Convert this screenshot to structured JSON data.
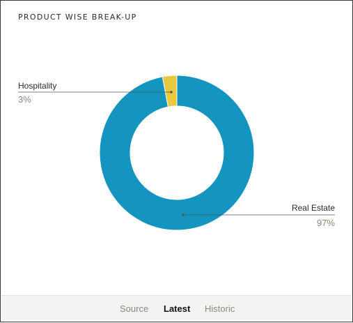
{
  "header": {
    "title": "PRODUCT WISE BREAK-UP"
  },
  "chart_data": {
    "type": "pie",
    "donut": true,
    "title": "PRODUCT WISE BREAK-UP",
    "categories": [
      "Hospitality",
      "Real Estate"
    ],
    "values": [
      3,
      97
    ],
    "labels": [
      "3%",
      "97%"
    ],
    "colors": [
      "#e8c93e",
      "#1395bf"
    ],
    "legend": "none"
  },
  "footer": {
    "tabs": [
      {
        "label": "Source"
      },
      {
        "label": "Latest"
      },
      {
        "label": "Historic"
      }
    ],
    "active_tab": "Latest"
  }
}
